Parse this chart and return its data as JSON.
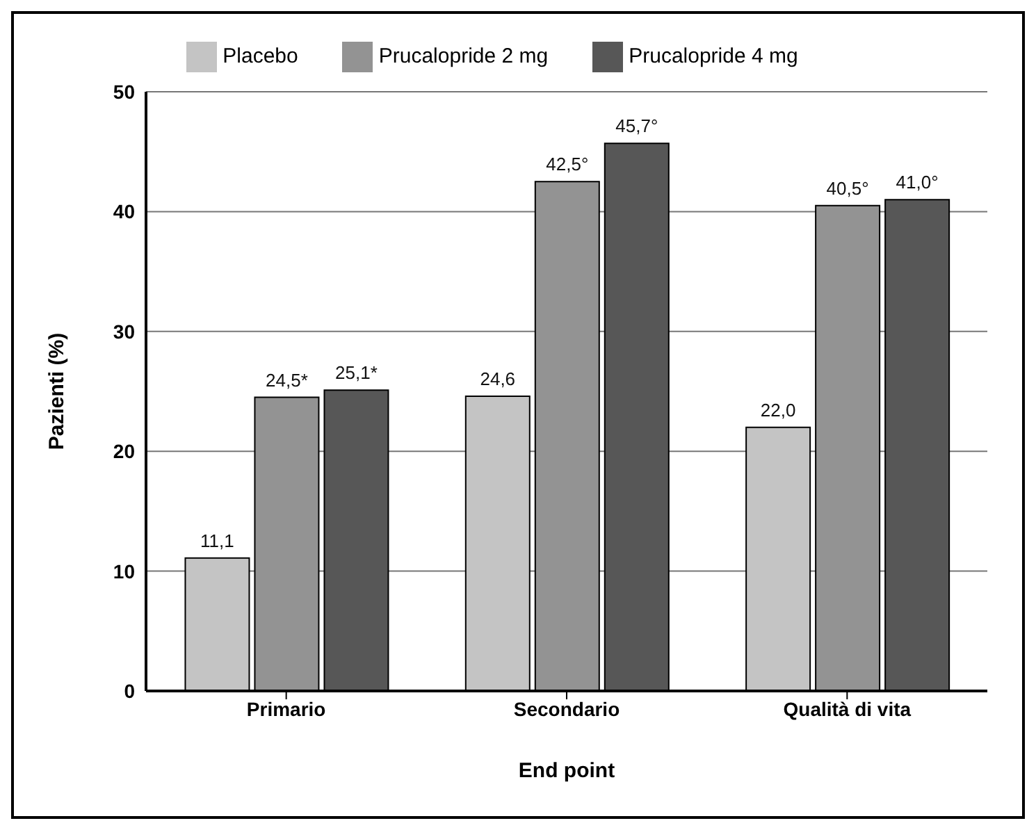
{
  "chart_data": {
    "type": "bar",
    "xlabel": "End point",
    "ylabel": "Pazienti (%)",
    "categories": [
      "Primario",
      "Secondario",
      "Qualità di vita"
    ],
    "series": [
      {
        "name": "Placebo",
        "color": "#c4c4c4",
        "values": [
          11.1,
          24.6,
          22.0
        ],
        "value_labels": [
          "11,1",
          "24,6",
          "22,0"
        ]
      },
      {
        "name": "Prucalopride 2 mg",
        "color": "#939393",
        "values": [
          24.5,
          42.5,
          40.5
        ],
        "value_labels": [
          "24,5*",
          "42,5°",
          "40,5°"
        ]
      },
      {
        "name": "Prucalopride 4 mg",
        "color": "#575757",
        "values": [
          25.1,
          45.7,
          41.0
        ],
        "value_labels": [
          "25,1*",
          "45,7°",
          "41,0°"
        ]
      }
    ],
    "ylim": [
      0,
      50
    ],
    "yticks": [
      0,
      10,
      20,
      30,
      40,
      50
    ],
    "grid": "y",
    "legend": "top"
  }
}
